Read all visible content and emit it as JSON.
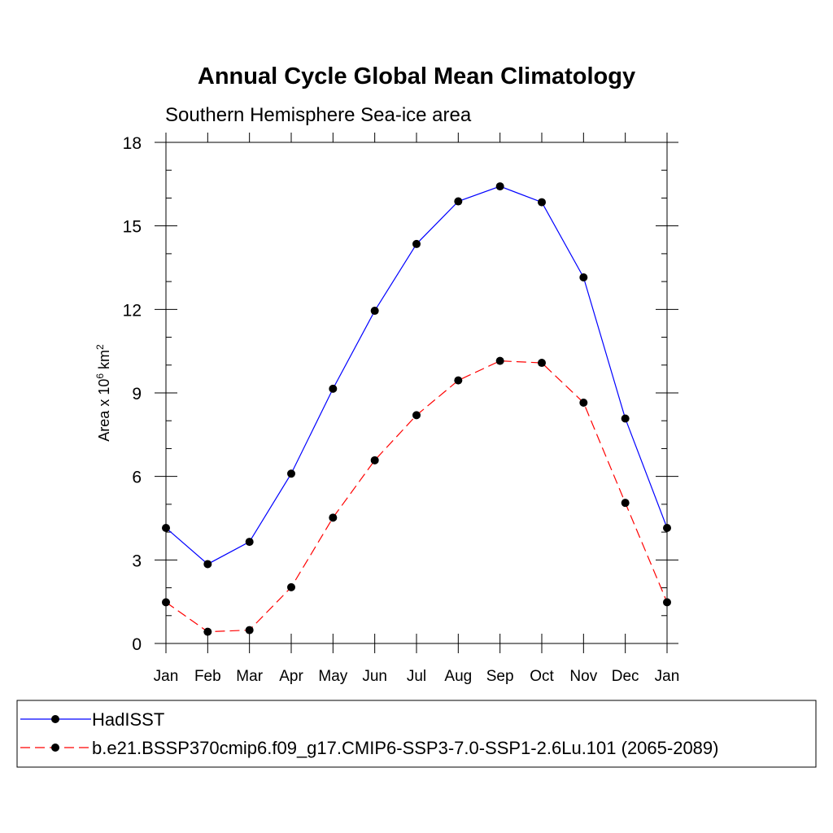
{
  "chart_data": {
    "type": "line",
    "title": "Annual Cycle Global Mean Climatology",
    "subtitle": "Southern Hemisphere Sea-ice area",
    "ylabel": {
      "prefix": "Area x 10",
      "exponent": "6",
      "unit": " km",
      "unit_exponent": "2"
    },
    "xlabel": "",
    "categories": [
      "Jan",
      "Feb",
      "Mar",
      "Apr",
      "May",
      "Jun",
      "Jul",
      "Aug",
      "Sep",
      "Oct",
      "Nov",
      "Dec",
      "Jan"
    ],
    "ylim": [
      0,
      18
    ],
    "yticks": [
      0,
      3,
      6,
      9,
      12,
      15,
      18
    ],
    "yminor_step": 1,
    "series": [
      {
        "name": "HadISST",
        "color": "#0000ff",
        "dash": "solid",
        "values": [
          4.15,
          2.85,
          3.65,
          6.1,
          9.15,
          11.95,
          14.35,
          15.88,
          16.42,
          15.85,
          13.15,
          8.08,
          4.15
        ]
      },
      {
        "name": "b.e21.BSSP370cmip6.f09_g17.CMIP6-SSP3-7.0-SSP1-2.6Lu.101 (2065-2089)",
        "color": "#ff0000",
        "dash": "dashed",
        "values": [
          1.48,
          0.42,
          0.48,
          2.02,
          4.52,
          6.58,
          8.2,
          9.45,
          10.15,
          10.08,
          8.65,
          5.05,
          1.48
        ]
      }
    ],
    "legend_position": "bottom",
    "grid": false
  }
}
